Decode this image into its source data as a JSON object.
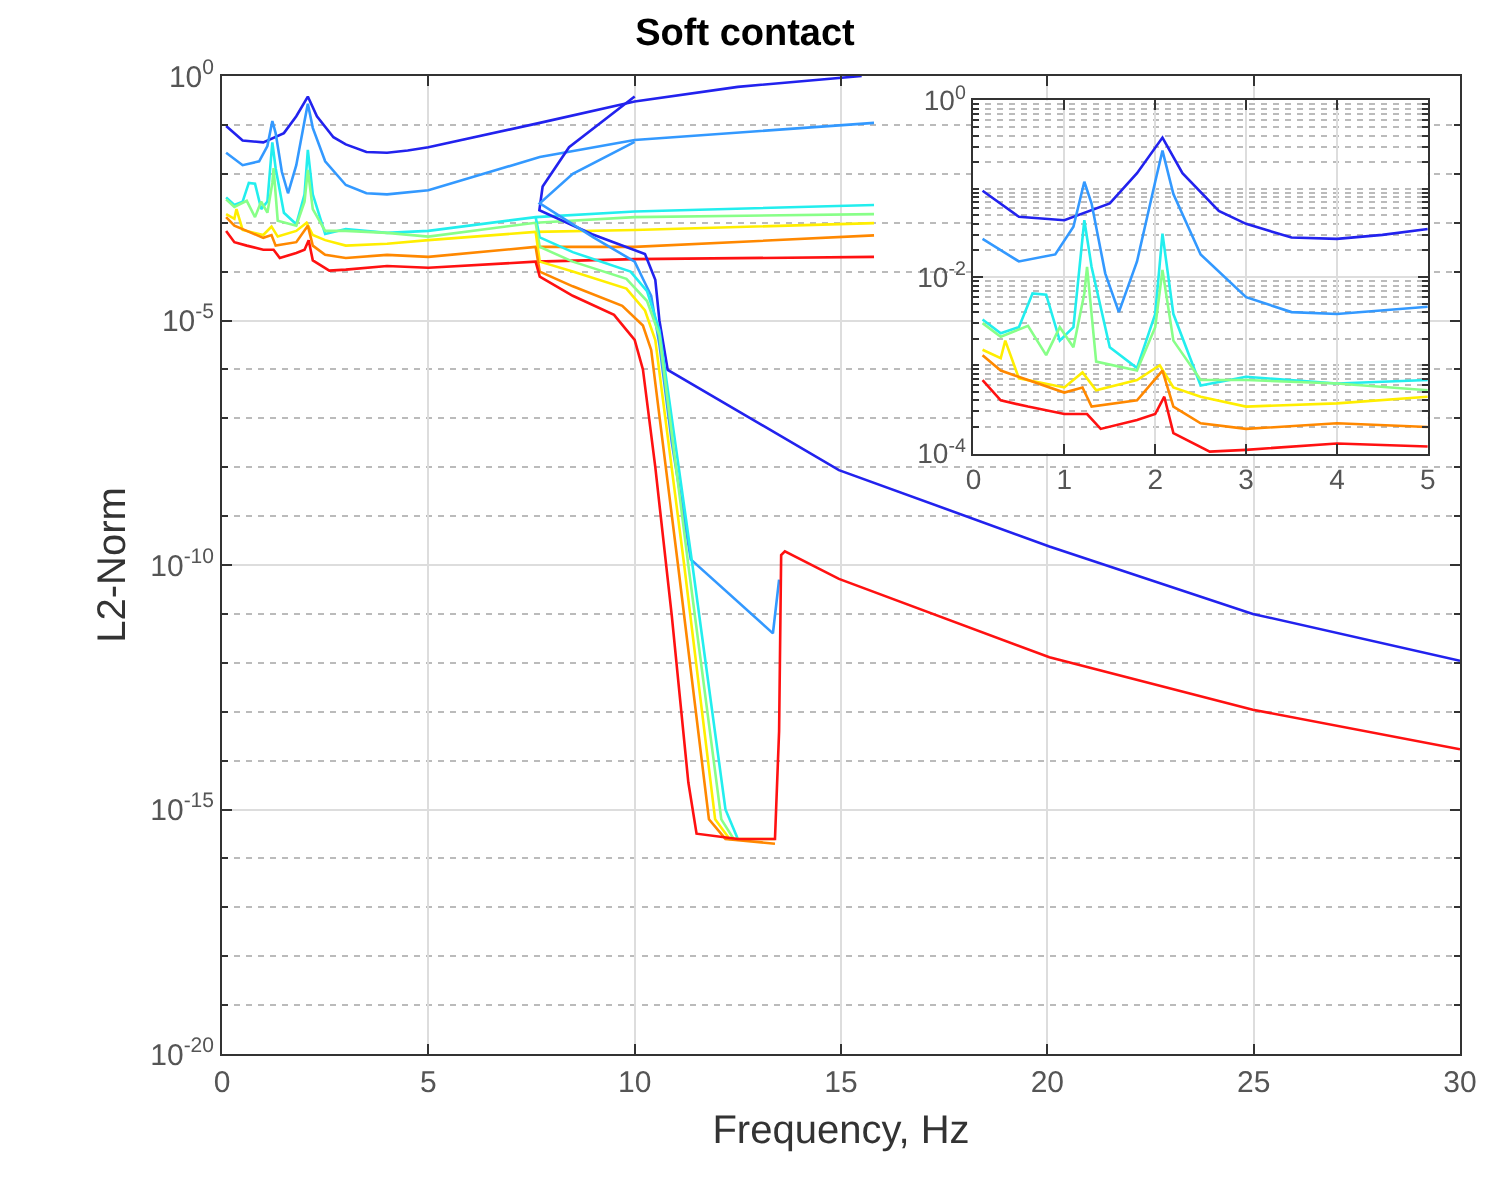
{
  "chart_data": [
    {
      "type": "line",
      "title": "Soft contact",
      "xlabel": "Frequency, Hz",
      "ylabel": "L2-Norm",
      "log": true,
      "grid": true,
      "xlim": [
        0,
        30
      ],
      "xticks": [
        0,
        5,
        10,
        15,
        20,
        25,
        30
      ],
      "ylim": [
        1e-20,
        1
      ],
      "yticks": [
        {
          "value": 1e-20,
          "label": "10$^{-20}$"
        },
        {
          "value": 1e-15,
          "label": "10$^{-15}$"
        },
        {
          "value": 1e-10,
          "label": "10$^{-10}$"
        },
        {
          "value": 1e-05,
          "label": "10$^{-5}$"
        },
        {
          "value": 1,
          "label": "10$^{0}$"
        }
      ],
      "series": [
        {
          "color": "#2222ee",
          "x": [
            0.1,
            0.5,
            1.0,
            1.5,
            1.8,
            2.08,
            2.3,
            2.7,
            3.0,
            3.5,
            4.0,
            4.5,
            5.0,
            7.7,
            10,
            12.5,
            15.5
          ],
          "values": [
            0.095,
            0.048,
            0.044,
            0.068,
            0.15,
            0.38,
            0.15,
            0.056,
            0.04,
            0.028,
            0.027,
            0.03,
            0.035,
            0.11,
            0.3,
            0.6,
            1.0
          ]
        },
        {
          "color": "#3399ff",
          "x": [
            0.1,
            0.5,
            0.9,
            1.1,
            1.22,
            1.3,
            1.45,
            1.6,
            1.8,
            2.0,
            2.08,
            2.2,
            2.5,
            3.0,
            3.5,
            4.0,
            5.0,
            7.7,
            10,
            15.8
          ],
          "values": [
            0.027,
            0.015,
            0.018,
            0.037,
            0.12,
            0.068,
            0.011,
            0.004,
            0.015,
            0.12,
            0.27,
            0.087,
            0.018,
            0.0059,
            0.004,
            0.0038,
            0.0046,
            0.022,
            0.049,
            0.11
          ]
        },
        {
          "color": "#22eeee",
          "x": [
            0.1,
            0.3,
            0.5,
            0.65,
            0.8,
            0.95,
            1.1,
            1.22,
            1.3,
            1.5,
            1.8,
            2.0,
            2.08,
            2.2,
            2.5,
            3.0,
            4.0,
            5.0,
            7.6,
            10,
            15.8
          ],
          "values": [
            0.0033,
            0.0023,
            0.0027,
            0.0065,
            0.0063,
            0.0019,
            0.0027,
            0.044,
            0.013,
            0.0016,
            0.00093,
            0.0038,
            0.031,
            0.0038,
            0.00059,
            0.00074,
            0.00062,
            0.00068,
            0.0013,
            0.0017,
            0.0023
          ]
        },
        {
          "color": "#88ff88",
          "x": [
            0.1,
            0.3,
            0.6,
            0.8,
            0.95,
            1.1,
            1.22,
            1.25,
            1.35,
            1.8,
            2.0,
            2.08,
            2.2,
            2.5,
            3.0,
            4.0,
            5.0,
            7.6,
            10,
            15.8
          ],
          "values": [
            0.003,
            0.0021,
            0.0028,
            0.0013,
            0.0027,
            0.0016,
            0.0065,
            0.013,
            0.0011,
            0.00087,
            0.0027,
            0.012,
            0.0019,
            0.00068,
            0.00068,
            0.00062,
            0.00052,
            0.001,
            0.0013,
            0.0015
          ]
        },
        {
          "color": "#ffee00",
          "x": [
            0.1,
            0.3,
            0.35,
            0.5,
            1.0,
            1.2,
            1.35,
            1.8,
            2.05,
            2.2,
            2.5,
            3.0,
            4.0,
            5.0,
            7.6,
            10,
            15.8
          ],
          "values": [
            0.0015,
            0.0012,
            0.0019,
            0.00071,
            0.00056,
            0.00083,
            0.00052,
            0.00068,
            0.001,
            0.00056,
            0.00044,
            0.00034,
            0.00037,
            0.00044,
            0.00065,
            0.00071,
            0.00098
          ]
        },
        {
          "color": "#ff8800",
          "x": [
            0.1,
            0.3,
            0.6,
            1.0,
            1.2,
            1.3,
            1.8,
            2.08,
            2.2,
            2.5,
            3.0,
            4.0,
            5.0,
            7.6,
            10,
            15.8
          ],
          "values": [
            0.0013,
            0.00087,
            0.00068,
            0.00049,
            0.00056,
            0.00034,
            0.0004,
            0.00087,
            0.00034,
            0.00022,
            0.00019,
            0.00022,
            0.0002,
            0.00032,
            0.00032,
            0.00055
          ]
        },
        {
          "color": "#ff1111",
          "x": [
            0.1,
            0.3,
            0.6,
            1.0,
            1.25,
            1.4,
            1.8,
            2.0,
            2.1,
            2.2,
            2.6,
            3.0,
            4.0,
            5.0,
            7.6,
            10,
            15.8
          ],
          "values": [
            0.00068,
            0.0004,
            0.00034,
            0.00028,
            0.00028,
            0.00019,
            0.00024,
            0.00028,
            0.00044,
            0.00017,
            0.000105,
            0.00011,
            0.00013,
            0.00012,
            0.00016,
            0.00018,
            0.0002
          ]
        },
        {
          "color": "#2222ee",
          "x": [
            10.0,
            8.41,
            7.77,
            7.69,
            8.97,
            10.25,
            10.5,
            10.6,
            10.8,
            12.87,
            14.95,
            20.05,
            24.98,
            30
          ],
          "values": [
            0.38,
            0.035,
            0.0055,
            0.0018,
            0.00058,
            0.00023,
            6.8e-05,
            1e-05,
            9.8e-07,
            9.3e-08,
            8.7e-09,
            2.4e-10,
            1e-11,
            1.1e-12
          ]
        },
        {
          "color": "#3399ff",
          "x": [
            10.0,
            8.5,
            7.7,
            9.0,
            10.0,
            10.4,
            10.6,
            10.9,
            11.36,
            13.35,
            13.5
          ],
          "values": [
            0.045,
            0.01,
            0.0025,
            0.0005,
            0.00016,
            3.2e-05,
            3.2e-06,
            3.2e-08,
            1.3e-10,
            4e-12,
            5e-11
          ]
        },
        {
          "color": "#22eeee",
          "x": [
            7.6,
            7.7,
            8.5,
            9.9,
            10.3,
            10.6,
            11.4,
            12.2,
            12.5
          ],
          "values": [
            0.0013,
            0.0005,
            0.00025,
            0.0001,
            4e-05,
            6.3e-06,
            1e-10,
            1e-15,
            2.5e-16
          ]
        },
        {
          "color": "#88ff88",
          "x": [
            7.6,
            7.7,
            8.5,
            9.8,
            10.3,
            10.6,
            11.3,
            12.1,
            12.4
          ],
          "values": [
            0.001,
            0.00032,
            0.00016,
            7.1e-05,
            2.5e-05,
            5e-06,
            1e-10,
            6.3e-16,
            2.5e-16
          ]
        },
        {
          "color": "#ffee00",
          "x": [
            7.6,
            7.7,
            8.5,
            9.8,
            10.25,
            10.5,
            11.2,
            11.95,
            12.3,
            13.4
          ],
          "values": [
            0.00065,
            0.00016,
            0.0001,
            4.5e-05,
            1.6e-05,
            4e-06,
            1e-10,
            6.3e-16,
            2.5e-16,
            2.5e-16
          ]
        },
        {
          "color": "#ff8800",
          "x": [
            7.6,
            7.7,
            8.5,
            9.7,
            10.2,
            10.4,
            11.05,
            11.8,
            12.2,
            13.4
          ],
          "values": [
            0.00032,
            0.0001,
            5e-05,
            2e-05,
            7.9e-06,
            2.5e-06,
            1e-10,
            6.3e-16,
            2.5e-16,
            2e-16
          ]
        },
        {
          "color": "#ff1111",
          "x": [
            7.6,
            7.7,
            8.5,
            9.5,
            10.0,
            10.2,
            10.5,
            10.9,
            11.3,
            11.5,
            12.5,
            13.4,
            13.5,
            13.55,
            13.64,
            14.95,
            20.05,
            24.98,
            30
          ],
          "values": [
            0.00016,
            7.9e-05,
            3.2e-05,
            1.3e-05,
            4e-06,
            1e-06,
            1e-08,
            9.1e-12,
            3.6e-15,
            3.2e-16,
            2.5e-16,
            2.5e-16,
            4e-14,
            1.6e-10,
            1.9e-10,
            5.2e-11,
            1.3e-12,
            1.1e-13,
            1.7e-14
          ]
        }
      ]
    },
    {
      "type": "line",
      "log": true,
      "grid": true,
      "xlim": [
        0,
        5
      ],
      "xticks": [
        0,
        1,
        2,
        3,
        4,
        5
      ],
      "ylim": [
        0.0001,
        1
      ],
      "yticks": [
        {
          "value": 0.0001,
          "label": "10$^{-4}$"
        },
        {
          "value": 0.01,
          "label": "10$^{-2}$"
        },
        {
          "value": 1,
          "label": "10$^{0}$"
        }
      ],
      "series": [
        {
          "color": "#2222ee",
          "x": [
            0.1,
            0.5,
            1.0,
            1.5,
            1.8,
            2.08,
            2.3,
            2.7,
            3.0,
            3.5,
            4.0,
            4.5,
            5.0
          ],
          "values": [
            0.095,
            0.048,
            0.044,
            0.068,
            0.15,
            0.38,
            0.15,
            0.056,
            0.04,
            0.028,
            0.027,
            0.03,
            0.035
          ]
        },
        {
          "color": "#3399ff",
          "x": [
            0.1,
            0.5,
            0.9,
            1.1,
            1.22,
            1.3,
            1.45,
            1.6,
            1.8,
            2.0,
            2.08,
            2.2,
            2.5,
            3.0,
            3.5,
            4.0,
            5.0
          ],
          "values": [
            0.027,
            0.015,
            0.018,
            0.037,
            0.12,
            0.068,
            0.011,
            0.004,
            0.015,
            0.12,
            0.27,
            0.087,
            0.018,
            0.0059,
            0.004,
            0.0038,
            0.0046
          ]
        },
        {
          "color": "#22eeee",
          "x": [
            0.1,
            0.3,
            0.5,
            0.65,
            0.8,
            0.95,
            1.1,
            1.22,
            1.3,
            1.5,
            1.8,
            2.0,
            2.08,
            2.2,
            2.5,
            3.0,
            4.0,
            5.0
          ],
          "values": [
            0.0033,
            0.0023,
            0.0027,
            0.0065,
            0.0063,
            0.0019,
            0.0027,
            0.044,
            0.013,
            0.0016,
            0.00093,
            0.0038,
            0.031,
            0.0038,
            0.00059,
            0.00074,
            0.00062,
            0.00068
          ]
        },
        {
          "color": "#88ff88",
          "x": [
            0.1,
            0.3,
            0.6,
            0.8,
            0.95,
            1.1,
            1.22,
            1.25,
            1.35,
            1.8,
            2.0,
            2.08,
            2.2,
            2.5,
            3.0,
            4.0,
            5.0
          ],
          "values": [
            0.003,
            0.0021,
            0.0028,
            0.0013,
            0.0027,
            0.0016,
            0.0065,
            0.013,
            0.0011,
            0.00087,
            0.0027,
            0.012,
            0.0019,
            0.00068,
            0.00068,
            0.00062,
            0.00052
          ]
        },
        {
          "color": "#ffee00",
          "x": [
            0.1,
            0.3,
            0.35,
            0.5,
            1.0,
            1.2,
            1.35,
            1.8,
            2.05,
            2.2,
            2.5,
            3.0,
            4.0,
            5.0
          ],
          "values": [
            0.0015,
            0.0012,
            0.0019,
            0.00071,
            0.00056,
            0.00083,
            0.00052,
            0.00068,
            0.001,
            0.00056,
            0.00044,
            0.00034,
            0.00037,
            0.00044
          ]
        },
        {
          "color": "#ff8800",
          "x": [
            0.1,
            0.3,
            0.6,
            1.0,
            1.2,
            1.3,
            1.8,
            2.08,
            2.2,
            2.5,
            3.0,
            4.0,
            5.0
          ],
          "values": [
            0.0013,
            0.00087,
            0.00068,
            0.00049,
            0.00056,
            0.00034,
            0.0004,
            0.00087,
            0.00034,
            0.00022,
            0.00019,
            0.00022,
            0.0002
          ]
        },
        {
          "color": "#ff1111",
          "x": [
            0.1,
            0.3,
            0.6,
            1.0,
            1.25,
            1.4,
            1.8,
            2.0,
            2.1,
            2.2,
            2.6,
            3.0,
            4.0,
            5.0
          ],
          "values": [
            0.00068,
            0.0004,
            0.00034,
            0.00028,
            0.00028,
            0.00019,
            0.00024,
            0.00028,
            0.00044,
            0.00017,
            0.000105,
            0.00011,
            0.00013,
            0.00012
          ]
        }
      ]
    }
  ]
}
